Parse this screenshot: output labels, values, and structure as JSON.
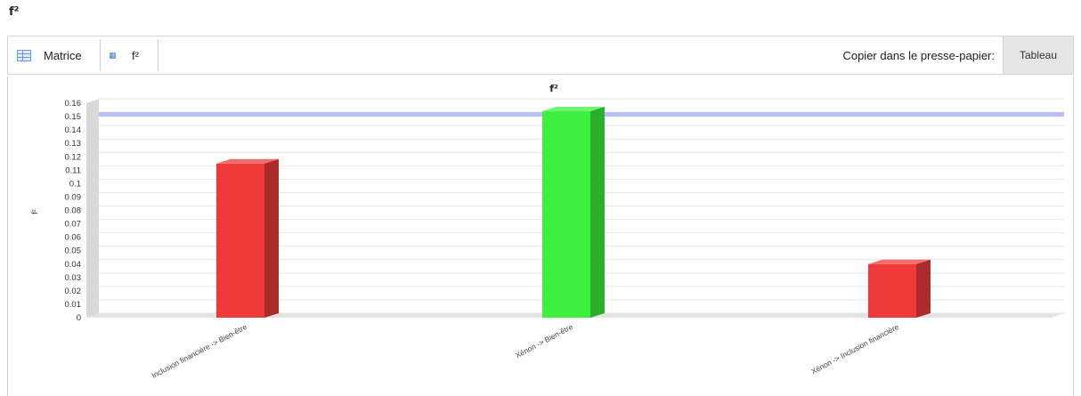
{
  "page": {
    "title": "f²"
  },
  "toolbar": {
    "matrix_label": "Matrice",
    "f2_label": "f²",
    "copy_label": "Copier dans le presse-papier:",
    "tableau_button": "Tableau"
  },
  "chart_data": {
    "type": "bar",
    "title": "f²",
    "ylabel": "f²",
    "ylim": [
      0,
      0.16
    ],
    "yticks": [
      "0",
      "0.01",
      "0.02",
      "0.03",
      "0.04",
      "0.05",
      "0.06",
      "0.07",
      "0.08",
      "0.09",
      "0.1",
      "0.11",
      "0.12",
      "0.13",
      "0.14",
      "0.15",
      "0.16"
    ],
    "categories": [
      "Inclusion financière -> Bien-être",
      "Xénon -> Bien-être",
      "Xénon -> Inclusion financière"
    ],
    "values": [
      0.115,
      0.154,
      0.04
    ],
    "bar_colors": [
      "#f03a3a",
      "#3df03d",
      "#f03a3a"
    ],
    "threshold": 0.15,
    "threshold_color": "#aab4f5",
    "grid": true
  }
}
